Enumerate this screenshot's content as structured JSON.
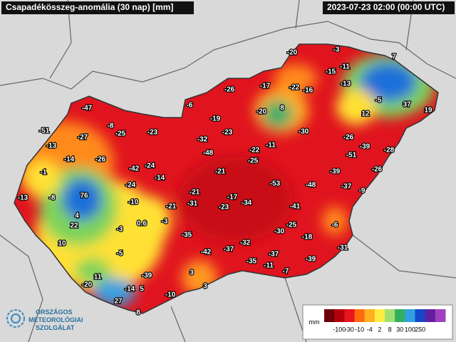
{
  "header": {
    "title": "Csapadékösszeg-anomália (30 nap) [mm]",
    "timestamp": "2023-07-23 02:00 (00:00 UTC)"
  },
  "stations": [
    -20,
    -3,
    7,
    -11,
    -15,
    -17,
    -22,
    -16,
    -13,
    -26,
    -6,
    -5,
    37,
    19,
    12,
    8,
    -20,
    -47,
    -19,
    -51,
    -8,
    -25,
    -23,
    -27,
    -23,
    -30,
    -26,
    -32,
    -11,
    -39,
    -28,
    -13,
    -48,
    -22,
    -51,
    -14,
    -26,
    -25,
    -1,
    -42,
    -24,
    -14,
    -21,
    -39,
    -26,
    -53,
    -48,
    -37,
    -9,
    -24,
    -21,
    -17,
    76,
    -13,
    -8,
    -10,
    -31,
    -34,
    -23,
    -21,
    -41,
    4,
    -3,
    0.6,
    -6,
    22,
    -3,
    -25,
    -30,
    -18,
    -35,
    10,
    -32,
    -37,
    -42,
    -31,
    -5,
    -37,
    -35,
    -39,
    -11,
    -7,
    3,
    11,
    -39,
    -20,
    -14,
    5,
    3,
    -10,
    27,
    8
  ],
  "legend": {
    "unit": "mm",
    "labels": [
      -100,
      -30,
      -10,
      -4,
      2,
      8,
      30,
      100,
      250
    ]
  },
  "logo": {
    "lines": [
      "ORSZÁGOS",
      "METEOROLÓGIAI",
      "SZOLGÁLAT"
    ]
  }
}
